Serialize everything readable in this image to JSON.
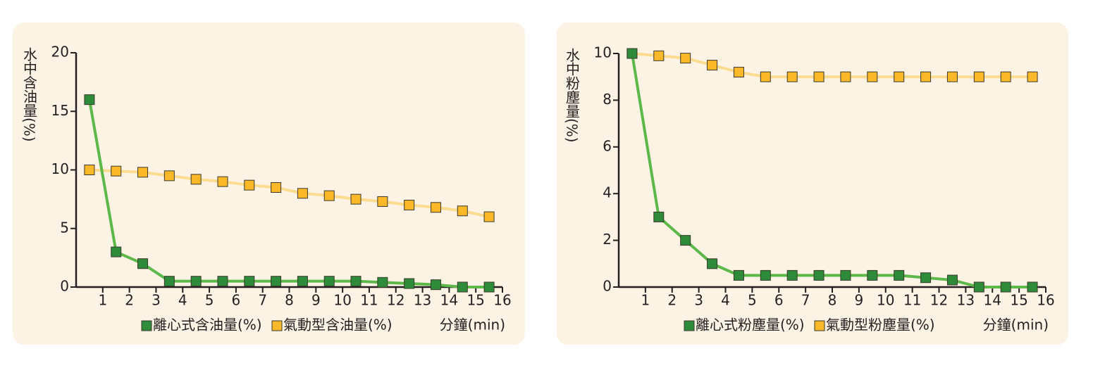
{
  "chart_data": [
    {
      "type": "line",
      "ylabel": "水中含油量(%)",
      "xlabel": "分鐘(min)",
      "x": [
        0.5,
        1.5,
        2.5,
        3.5,
        4.5,
        5.5,
        6.5,
        7.5,
        8.5,
        9.5,
        10.5,
        11.5,
        12.5,
        13.5,
        14.5,
        15.5
      ],
      "xlim": [
        0,
        16
      ],
      "xticks": [
        1,
        2,
        3,
        4,
        5,
        6,
        7,
        8,
        9,
        10,
        11,
        12,
        13,
        14,
        15,
        16
      ],
      "ylim": [
        0,
        20
      ],
      "yticks": [
        0,
        5,
        10,
        15,
        20
      ],
      "series": [
        {
          "name": "離心式含油量(%)",
          "color": "#5cb849",
          "marker_color": "#2e8b3a",
          "values": [
            16,
            3,
            2,
            0.5,
            0.5,
            0.5,
            0.5,
            0.5,
            0.5,
            0.5,
            0.5,
            0.4,
            0.3,
            0.2,
            0,
            0
          ]
        },
        {
          "name": "氣動型含油量(%)",
          "color": "#fddc8f",
          "marker_color": "#fbb829",
          "values": [
            10,
            9.9,
            9.8,
            9.5,
            9.2,
            9,
            8.7,
            8.5,
            8,
            7.8,
            7.5,
            7.3,
            7,
            6.8,
            6.5,
            6
          ]
        }
      ]
    },
    {
      "type": "line",
      "ylabel": "水中粉塵量(%)",
      "xlabel": "分鐘(min)",
      "x": [
        0.5,
        1.5,
        2.5,
        3.5,
        4.5,
        5.5,
        6.5,
        7.5,
        8.5,
        9.5,
        10.5,
        11.5,
        12.5,
        13.5,
        14.5,
        15.5
      ],
      "xlim": [
        0,
        16
      ],
      "xticks": [
        1,
        2,
        3,
        4,
        5,
        6,
        7,
        8,
        9,
        10,
        11,
        12,
        13,
        14,
        15,
        16
      ],
      "ylim": [
        0,
        10
      ],
      "yticks": [
        0,
        2,
        4,
        6,
        8,
        10
      ],
      "series": [
        {
          "name": "離心式粉塵量(%)",
          "color": "#5cb849",
          "marker_color": "#2e8b3a",
          "values": [
            10,
            3,
            2,
            1,
            0.5,
            0.5,
            0.5,
            0.5,
            0.5,
            0.5,
            0.5,
            0.4,
            0.3,
            0,
            0,
            0
          ]
        },
        {
          "name": "氣動型粉塵量(%)",
          "color": "#fddc8f",
          "marker_color": "#fbb829",
          "values": [
            10,
            9.9,
            9.8,
            9.5,
            9.2,
            9,
            9,
            9,
            9,
            9,
            9,
            9,
            9,
            9,
            9,
            9
          ]
        }
      ]
    }
  ]
}
